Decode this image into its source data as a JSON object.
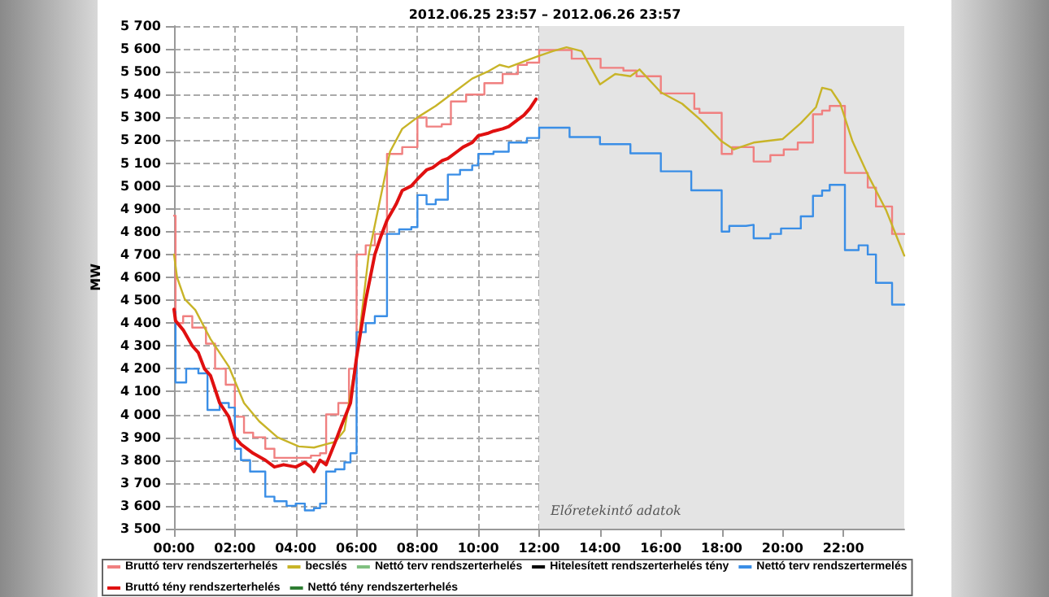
{
  "chart_data": {
    "type": "line",
    "title": "2012.06.25 23:57 – 2012.06.26 23:57",
    "ylabel": "MW",
    "xlim": [
      0,
      24
    ],
    "ylim": [
      3500,
      5700
    ],
    "xticks": [
      {
        "value": 0,
        "label": "00:00"
      },
      {
        "value": 2,
        "label": "02:00"
      },
      {
        "value": 4,
        "label": "04:00"
      },
      {
        "value": 6,
        "label": "06:00"
      },
      {
        "value": 8,
        "label": "08:00"
      },
      {
        "value": 10,
        "label": "10:00"
      },
      {
        "value": 12,
        "label": "12:00"
      },
      {
        "value": 14,
        "label": "14:00"
      },
      {
        "value": 16,
        "label": "16:00"
      },
      {
        "value": 18,
        "label": "18:00"
      },
      {
        "value": 20,
        "label": "20:00"
      },
      {
        "value": 22,
        "label": "22:00"
      }
    ],
    "yticks": [
      {
        "value": 3500,
        "label": "3 500"
      },
      {
        "value": 3600,
        "label": "3 600"
      },
      {
        "value": 3700,
        "label": "3 700"
      },
      {
        "value": 3800,
        "label": "3 800"
      },
      {
        "value": 3900,
        "label": "3 900"
      },
      {
        "value": 4000,
        "label": "4 000"
      },
      {
        "value": 4100,
        "label": "4 100"
      },
      {
        "value": 4200,
        "label": "4 200"
      },
      {
        "value": 4300,
        "label": "4 300"
      },
      {
        "value": 4400,
        "label": "4 400"
      },
      {
        "value": 4500,
        "label": "4 500"
      },
      {
        "value": 4600,
        "label": "4 600"
      },
      {
        "value": 4700,
        "label": "4 700"
      },
      {
        "value": 4800,
        "label": "4 800"
      },
      {
        "value": 4900,
        "label": "4 900"
      },
      {
        "value": 5000,
        "label": "5 000"
      },
      {
        "value": 5100,
        "label": "5 100"
      },
      {
        "value": 5200,
        "label": "5 200"
      },
      {
        "value": 5300,
        "label": "5 300"
      },
      {
        "value": 5400,
        "label": "5 400"
      },
      {
        "value": 5500,
        "label": "5 500"
      },
      {
        "value": 5600,
        "label": "5 600"
      },
      {
        "value": 5700,
        "label": "5 700"
      }
    ],
    "grid": true,
    "legend": "bottom",
    "marker": "none",
    "line_style": "solid",
    "bands": [
      {
        "axis": "x",
        "from": 12,
        "to": 24,
        "label": "Előretekintő adatok",
        "color": "#e4e4e4"
      }
    ],
    "series": [
      {
        "name": "Bruttó terv rendszerterhelés",
        "type": "step",
        "color": "#f08080",
        "x": [
          0,
          0.05,
          0.3,
          0.6,
          1.05,
          1.35,
          1.7,
          2.0,
          2.3,
          2.6,
          3.0,
          3.3,
          4.5,
          4.8,
          5.0,
          5.4,
          5.75,
          6.0,
          6.3,
          6.6,
          7.0,
          7.5,
          8.0,
          8.3,
          8.8,
          9.1,
          9.6,
          10.2,
          10.8,
          11.3,
          11.6,
          12.0,
          13.07,
          14.02,
          14.77,
          15.2,
          16.0,
          17.1,
          17.27,
          18.0,
          18.34,
          19.05,
          19.6,
          20.04,
          20.5,
          21.0,
          21.3,
          21.55,
          22.05,
          22.8,
          23.07,
          23.6,
          24
        ],
        "values": [
          4870,
          4400,
          4430,
          4380,
          4310,
          4200,
          4130,
          3990,
          3920,
          3900,
          3850,
          3810,
          3820,
          3830,
          4000,
          4050,
          4200,
          4700,
          4740,
          4790,
          5140,
          5170,
          5300,
          5260,
          5270,
          5370,
          5400,
          5450,
          5490,
          5530,
          5540,
          5595,
          5557,
          5517,
          5505,
          5480,
          5405,
          5338,
          5320,
          5140,
          5170,
          5107,
          5135,
          5160,
          5190,
          5314,
          5330,
          5350,
          5057,
          4993,
          4910,
          4790,
          4790
        ]
      },
      {
        "name": "becslés",
        "type": "line",
        "color": "#c8b428",
        "x": [
          0,
          0.1,
          0.35,
          0.7,
          1.2,
          1.8,
          2.3,
          2.8,
          3.4,
          4.1,
          4.6,
          5.0,
          5.3,
          5.6,
          6.0,
          6.4,
          7.1,
          7.5,
          8.0,
          8.6,
          9.1,
          9.8,
          10.3,
          10.7,
          11.0,
          11.6,
          12.0,
          12.45,
          12.9,
          13.4,
          14.0,
          14.5,
          15.0,
          15.3,
          16.0,
          16.7,
          17.3,
          18.0,
          18.4,
          19.05,
          20.0,
          20.6,
          21.1,
          21.3,
          21.6,
          21.9,
          22.3,
          22.8,
          23.4,
          24
        ],
        "values": [
          4700,
          4600,
          4505,
          4457,
          4330,
          4210,
          4050,
          3970,
          3900,
          3860,
          3855,
          3870,
          3880,
          3930,
          4250,
          4700,
          5150,
          5250,
          5300,
          5350,
          5400,
          5470,
          5500,
          5530,
          5520,
          5550,
          5570,
          5590,
          5607,
          5590,
          5445,
          5490,
          5480,
          5510,
          5410,
          5360,
          5290,
          5195,
          5160,
          5190,
          5205,
          5275,
          5345,
          5430,
          5420,
          5360,
          5195,
          5050,
          4895,
          4695
        ]
      },
      {
        "name": "Nettó terv rendszerterhelés",
        "type": "line",
        "color": "#80c080"
      },
      {
        "name": "Hitelesített rendszerterhelés tény",
        "type": "line",
        "color": "#000000"
      },
      {
        "name": "Nettó terv rendszertermelés",
        "type": "step",
        "color": "#3a8ee6",
        "x": [
          0,
          0.05,
          0.4,
          0.8,
          1.1,
          1.5,
          1.8,
          2.0,
          2.2,
          2.5,
          3.0,
          3.3,
          3.7,
          4.0,
          4.3,
          4.6,
          4.8,
          5.0,
          5.3,
          5.6,
          5.8,
          6.0,
          6.3,
          6.6,
          7.0,
          7.4,
          7.8,
          8.0,
          8.3,
          8.6,
          9.0,
          9.4,
          9.8,
          10.0,
          10.5,
          11.0,
          11.6,
          12.0,
          13.0,
          14.0,
          15.0,
          16.0,
          17.0,
          18.0,
          18.25,
          18.8,
          19.05,
          19.6,
          19.95,
          20.6,
          21.0,
          21.3,
          21.55,
          22.05,
          22.5,
          22.8,
          23.07,
          23.6,
          24
        ],
        "values": [
          4450,
          4140,
          4200,
          4180,
          4020,
          4050,
          4030,
          3850,
          3800,
          3750,
          3640,
          3620,
          3600,
          3610,
          3580,
          3590,
          3610,
          3750,
          3760,
          3790,
          3830,
          4360,
          4400,
          4430,
          4790,
          4810,
          4820,
          4960,
          4920,
          4940,
          5050,
          5070,
          5090,
          5140,
          5150,
          5190,
          5210,
          5255,
          5214,
          5183,
          5143,
          5064,
          4981,
          4800,
          4825,
          4830,
          4771,
          4790,
          4814,
          4867,
          4957,
          4980,
          5005,
          4719,
          4740,
          4700,
          4576,
          4481,
          4481
        ]
      },
      {
        "name": "Bruttó tény rendszerterhelés",
        "type": "line",
        "color": "#e01010",
        "x": [
          0,
          0.05,
          0.3,
          0.6,
          0.8,
          1.0,
          1.2,
          1.5,
          1.8,
          2.0,
          2.2,
          2.6,
          3.0,
          3.3,
          3.6,
          4.0,
          4.3,
          4.5,
          4.6,
          4.8,
          5.0,
          5.3,
          5.5,
          5.8,
          6.0,
          6.3,
          6.6,
          6.8,
          7.0,
          7.3,
          7.5,
          7.8,
          8.0,
          8.3,
          8.5,
          8.8,
          9.0,
          9.3,
          9.5,
          9.8,
          10.0,
          10.3,
          10.5,
          10.8,
          11.0,
          11.3,
          11.5,
          11.7,
          11.9
        ],
        "values": [
          4460,
          4410,
          4370,
          4300,
          4270,
          4200,
          4170,
          4050,
          3990,
          3900,
          3870,
          3830,
          3800,
          3770,
          3780,
          3770,
          3790,
          3770,
          3750,
          3800,
          3780,
          3880,
          3950,
          4050,
          4250,
          4500,
          4700,
          4780,
          4850,
          4920,
          4980,
          5000,
          5030,
          5070,
          5080,
          5110,
          5120,
          5150,
          5170,
          5190,
          5220,
          5230,
          5240,
          5250,
          5260,
          5290,
          5310,
          5340,
          5380
        ]
      },
      {
        "name": "Nettó tény rendszerterhelés",
        "type": "line",
        "color": "#2e7d32"
      }
    ]
  }
}
